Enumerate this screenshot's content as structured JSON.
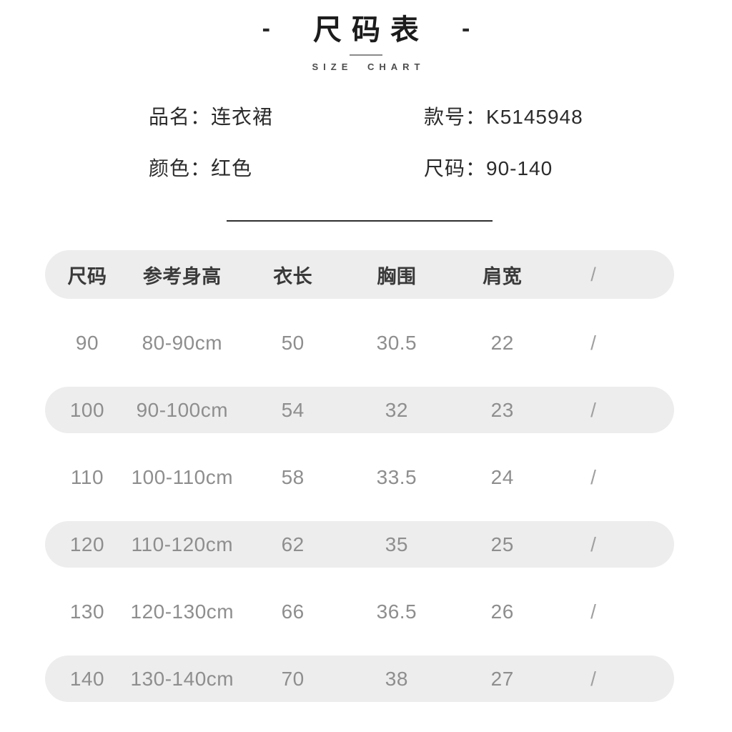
{
  "header": {
    "dash_left": "-",
    "dash_right": "-",
    "title": "尺码表",
    "subtitle": "SIZE CHART"
  },
  "info": {
    "product_name_label": "品名：",
    "product_name_value": "连衣裙",
    "style_no_label": "款号：",
    "style_no_value": "K5145948",
    "color_label": "颜色：",
    "color_value": "红色",
    "size_range_label": "尺码：",
    "size_range_value": "90-140"
  },
  "table": {
    "headers": [
      "尺码",
      "参考身高",
      "衣长",
      "胸围",
      "肩宽",
      "/"
    ],
    "rows": [
      [
        "90",
        "80-90cm",
        "50",
        "30.5",
        "22",
        "/"
      ],
      [
        "100",
        "90-100cm",
        "54",
        "32",
        "23",
        "/"
      ],
      [
        "110",
        "100-110cm",
        "58",
        "33.5",
        "24",
        "/"
      ],
      [
        "120",
        "110-120cm",
        "62",
        "35",
        "25",
        "/"
      ],
      [
        "130",
        "120-130cm",
        "66",
        "36.5",
        "26",
        "/"
      ],
      [
        "140",
        "130-140cm",
        "70",
        "38",
        "27",
        "/"
      ]
    ]
  },
  "colors": {
    "stripe": "#ededed",
    "body_text": "#8e8e8e",
    "heading_text": "#3a3a3a",
    "divider": "#2f2f2f"
  }
}
